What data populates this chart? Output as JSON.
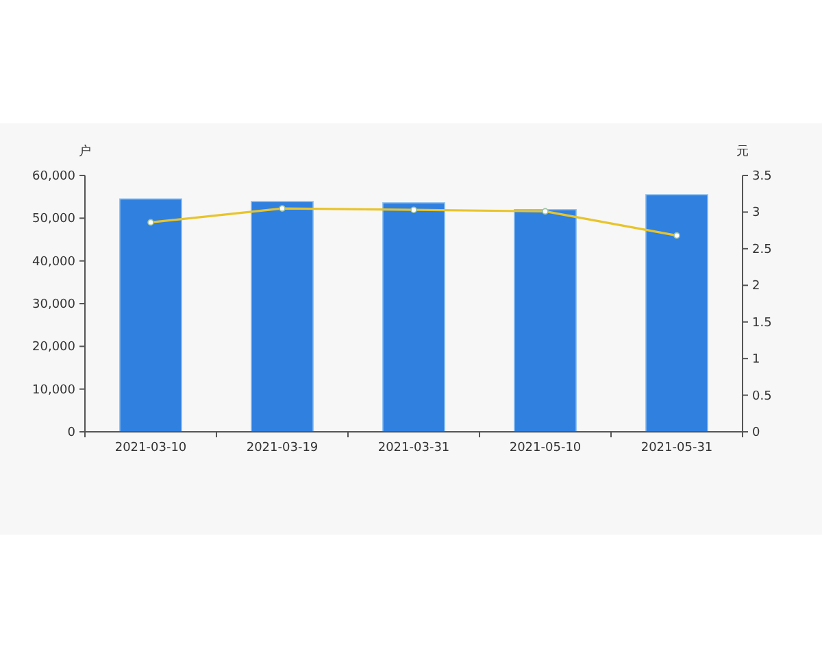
{
  "chart_data": {
    "type": "bar",
    "categories": [
      "2021-03-10",
      "2021-03-19",
      "2021-03-31",
      "2021-05-10",
      "2021-05-31"
    ],
    "ylabel": "户",
    "y2label": "元",
    "ylim": [
      0,
      60000
    ],
    "yticks": [
      {
        "value": 0,
        "label": "0"
      },
      {
        "value": 10000,
        "label": "10,000"
      },
      {
        "value": 20000,
        "label": "20,000"
      },
      {
        "value": 30000,
        "label": "30,000"
      },
      {
        "value": 40000,
        "label": "40,000"
      },
      {
        "value": 50000,
        "label": "50,000"
      },
      {
        "value": 60000,
        "label": "60,000"
      }
    ],
    "y2lim": [
      0,
      3.5
    ],
    "y2ticks": [
      0,
      0.5,
      1,
      1.5,
      2,
      2.5,
      3,
      3.5
    ],
    "grid": false,
    "marker": "circle",
    "series": [
      {
        "color": "#3080e0",
        "values": [
          54500,
          53900,
          53600,
          52000,
          55500
        ]
      },
      {
        "type": "line",
        "axis": "y2",
        "color": "#e8c42a",
        "values": [
          2.86,
          3.05,
          3.03,
          3.01,
          2.68
        ]
      }
    ]
  }
}
